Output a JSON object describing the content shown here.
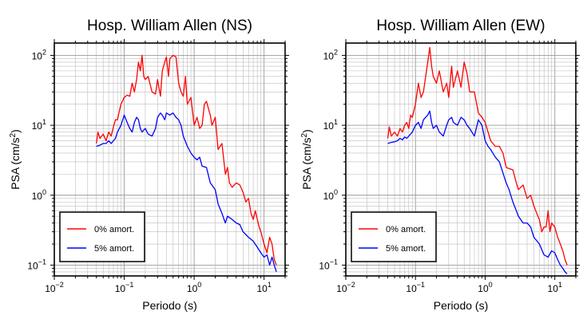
{
  "chart_data": [
    {
      "type": "line",
      "title": "Hosp. William Allen (NS)",
      "xlabel": "Periodo (s)",
      "ylabel": "PSA (cm/s²)",
      "xscale": "log",
      "yscale": "log",
      "xlim": [
        0.01,
        20
      ],
      "ylim": [
        0.07,
        150
      ],
      "x_ticks": [
        {
          "base": "10",
          "exp": "−2"
        },
        {
          "base": "10",
          "exp": "−1"
        },
        {
          "base": "10",
          "exp": "0"
        },
        {
          "base": "10",
          "exp": "1"
        }
      ],
      "y_ticks": [
        {
          "base": "10",
          "exp": "−1"
        },
        {
          "base": "10",
          "exp": "0"
        },
        {
          "base": "10",
          "exp": "1"
        },
        {
          "base": "10",
          "exp": "2"
        }
      ],
      "grid": true,
      "legend_position": "bottom-left",
      "series": [
        {
          "name": "0% amort.",
          "color": "#ff0000",
          "x": [
            0.04,
            0.042,
            0.045,
            0.05,
            0.055,
            0.06,
            0.065,
            0.07,
            0.075,
            0.08,
            0.085,
            0.09,
            0.1,
            0.11,
            0.12,
            0.13,
            0.14,
            0.15,
            0.16,
            0.17,
            0.18,
            0.19,
            0.2,
            0.22,
            0.25,
            0.28,
            0.3,
            0.33,
            0.35,
            0.38,
            0.4,
            0.43,
            0.45,
            0.5,
            0.55,
            0.6,
            0.65,
            0.7,
            0.75,
            0.8,
            0.9,
            1.0,
            1.1,
            1.2,
            1.3,
            1.4,
            1.5,
            1.7,
            1.8,
            2.0,
            2.2,
            2.5,
            2.8,
            3.0,
            3.2,
            3.5,
            4.0,
            4.5,
            5.0,
            5.5,
            6.0,
            6.5,
            7.0,
            7.5,
            8.0,
            8.5,
            9.0,
            10.0,
            11.0,
            12.0,
            13.0,
            14.0,
            15.0
          ],
          "y": [
            5.5,
            8,
            6.5,
            7.5,
            6,
            8,
            7,
            9.5,
            12,
            12,
            16,
            20,
            25,
            27,
            26,
            40,
            30,
            45,
            80,
            60,
            100,
            50,
            45,
            50,
            30,
            28,
            45,
            26,
            60,
            80,
            95,
            50,
            90,
            100,
            95,
            40,
            30,
            26,
            50,
            20,
            25,
            10,
            13,
            9,
            10,
            20,
            22,
            14,
            10,
            13,
            4.5,
            5.5,
            2,
            2.5,
            1.5,
            1.3,
            1.5,
            1.4,
            1.1,
            0.8,
            0.9,
            0.55,
            0.45,
            0.6,
            0.45,
            0.35,
            0.3,
            0.2,
            0.15,
            0.25,
            0.2,
            0.12,
            0.1
          ]
        },
        {
          "name": "5% amort.",
          "color": "#0000ff",
          "x": [
            0.04,
            0.045,
            0.05,
            0.055,
            0.06,
            0.065,
            0.07,
            0.075,
            0.08,
            0.09,
            0.1,
            0.11,
            0.12,
            0.13,
            0.14,
            0.15,
            0.16,
            0.17,
            0.18,
            0.2,
            0.22,
            0.25,
            0.28,
            0.3,
            0.33,
            0.35,
            0.38,
            0.4,
            0.45,
            0.5,
            0.55,
            0.6,
            0.65,
            0.7,
            0.8,
            0.9,
            1.0,
            1.1,
            1.2,
            1.3,
            1.5,
            1.7,
            2.0,
            2.2,
            2.5,
            2.8,
            3.0,
            3.5,
            4.0,
            4.5,
            5.0,
            6.0,
            7.0,
            8.0,
            9.0,
            10.0,
            11.0,
            12.0,
            13.0,
            14.0,
            15.0
          ],
          "y": [
            5,
            5.2,
            5.5,
            5.5,
            6,
            5.5,
            6,
            6.5,
            8,
            10,
            14,
            11,
            9,
            8,
            11,
            13,
            12,
            9,
            8,
            9,
            7.5,
            7,
            9,
            13,
            15,
            14,
            12,
            15,
            14,
            15,
            13,
            12,
            10,
            7,
            5,
            4,
            3.5,
            3.2,
            3.5,
            2.6,
            2.5,
            1.5,
            1.2,
            0.75,
            0.55,
            0.4,
            0.5,
            0.45,
            0.4,
            0.38,
            0.3,
            0.25,
            0.22,
            0.18,
            0.15,
            0.13,
            0.14,
            0.1,
            0.13,
            0.1,
            0.08
          ]
        }
      ]
    },
    {
      "type": "line",
      "title": "Hosp. William Allen (EW)",
      "xlabel": "Periodo (s)",
      "ylabel": "PSA (cm/s²)",
      "xscale": "log",
      "yscale": "log",
      "xlim": [
        0.01,
        20
      ],
      "ylim": [
        0.07,
        150
      ],
      "x_ticks": [
        {
          "base": "10",
          "exp": "−2"
        },
        {
          "base": "10",
          "exp": "−1"
        },
        {
          "base": "10",
          "exp": "0"
        },
        {
          "base": "10",
          "exp": "1"
        }
      ],
      "y_ticks": [
        {
          "base": "10",
          "exp": "−1"
        },
        {
          "base": "10",
          "exp": "0"
        },
        {
          "base": "10",
          "exp": "1"
        },
        {
          "base": "10",
          "exp": "2"
        }
      ],
      "grid": true,
      "legend_position": "bottom-left",
      "series": [
        {
          "name": "0% amort.",
          "color": "#ff0000",
          "x": [
            0.04,
            0.042,
            0.045,
            0.05,
            0.055,
            0.06,
            0.065,
            0.07,
            0.075,
            0.08,
            0.085,
            0.09,
            0.1,
            0.11,
            0.12,
            0.13,
            0.14,
            0.15,
            0.16,
            0.17,
            0.18,
            0.2,
            0.22,
            0.25,
            0.28,
            0.3,
            0.33,
            0.35,
            0.4,
            0.45,
            0.5,
            0.55,
            0.6,
            0.7,
            0.8,
            0.9,
            1.0,
            1.1,
            1.2,
            1.4,
            1.6,
            1.8,
            2.0,
            2.2,
            2.5,
            2.8,
            3.0,
            3.5,
            4.0,
            4.5,
            5.0,
            5.5,
            6.0,
            6.5,
            7.0,
            7.5,
            8.0,
            8.5,
            9.0,
            10.0,
            11.0,
            12.0,
            13.0,
            14.0,
            15.0
          ],
          "y": [
            6.5,
            9.5,
            7,
            8,
            7,
            9,
            8,
            10,
            11,
            9,
            14,
            13,
            20,
            40,
            25,
            30,
            50,
            80,
            130,
            70,
            50,
            40,
            60,
            30,
            40,
            25,
            70,
            35,
            60,
            35,
            80,
            55,
            30,
            30,
            15,
            13,
            11,
            8,
            6,
            5,
            5,
            4,
            2.5,
            2.4,
            2.3,
            1.5,
            1.2,
            1.4,
            0.9,
            1.0,
            0.7,
            0.55,
            0.45,
            0.3,
            0.35,
            0.35,
            0.6,
            0.3,
            0.4,
            0.35,
            0.25,
            0.2,
            0.16,
            0.12,
            0.1
          ]
        },
        {
          "name": "5% amort.",
          "color": "#0000ff",
          "x": [
            0.04,
            0.045,
            0.05,
            0.055,
            0.06,
            0.065,
            0.07,
            0.075,
            0.08,
            0.09,
            0.1,
            0.11,
            0.12,
            0.13,
            0.14,
            0.15,
            0.16,
            0.17,
            0.18,
            0.2,
            0.22,
            0.25,
            0.28,
            0.3,
            0.33,
            0.35,
            0.4,
            0.45,
            0.5,
            0.55,
            0.6,
            0.7,
            0.8,
            0.9,
            1.0,
            1.1,
            1.2,
            1.4,
            1.6,
            2.0,
            2.2,
            2.5,
            2.8,
            3.0,
            3.5,
            4.0,
            4.5,
            5.0,
            6.0,
            7.0,
            8.0,
            9.0,
            10.0,
            11.0,
            12.0,
            13.0,
            14.0,
            15.0
          ],
          "y": [
            5.5,
            5.7,
            5.8,
            6,
            6.5,
            6.2,
            6.8,
            6.5,
            7,
            8,
            10,
            11,
            9,
            12,
            13,
            14,
            16,
            11,
            9,
            10,
            8,
            7,
            10,
            12,
            13,
            11,
            10,
            13,
            12,
            10,
            9,
            7,
            12,
            10,
            6,
            5,
            4.5,
            3.5,
            3,
            1.5,
            1.2,
            0.8,
            0.6,
            0.5,
            0.4,
            0.4,
            0.35,
            0.25,
            0.2,
            0.14,
            0.13,
            0.16,
            0.15,
            0.12,
            0.1,
            0.09,
            0.08,
            0.075
          ]
        }
      ]
    }
  ]
}
